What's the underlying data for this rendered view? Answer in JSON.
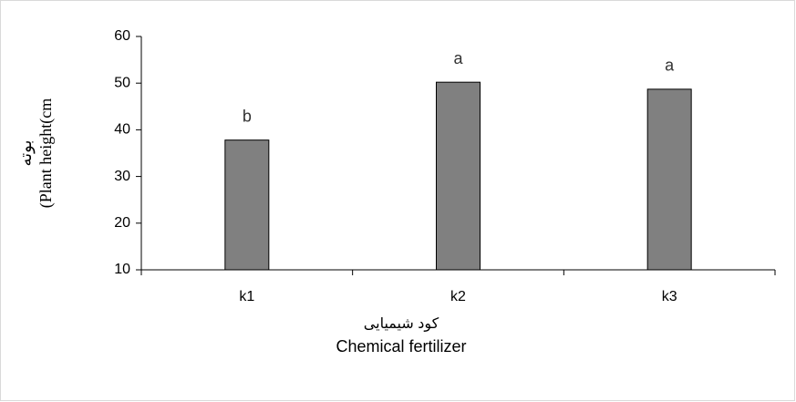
{
  "chart_data": {
    "type": "bar",
    "y_label": [
      "بوته",
      "(Plant height(cm"
    ],
    "x_label": [
      "کود شیمیایی",
      "Chemical fertilizer"
    ],
    "categories": [
      "k1",
      "k2",
      "k3"
    ],
    "values": [
      37.8,
      50.2,
      48.7
    ],
    "annotations": [
      "b",
      "a",
      "a"
    ],
    "color": "#808080",
    "ylim": [
      10,
      60
    ],
    "yticks": [
      10,
      20,
      30,
      40,
      50,
      60
    ],
    "grid": false
  }
}
